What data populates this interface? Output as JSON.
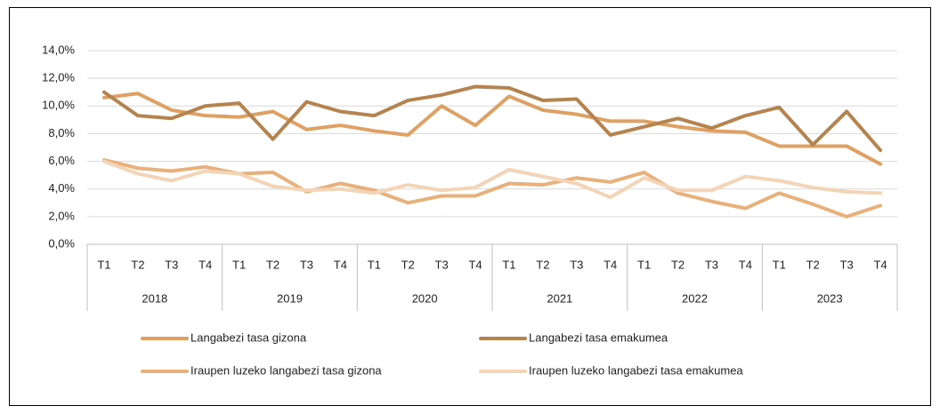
{
  "chart_data": {
    "type": "line",
    "categories": [
      "T1",
      "T2",
      "T3",
      "T4",
      "T1",
      "T2",
      "T3",
      "T4",
      "T1",
      "T2",
      "T3",
      "T4",
      "T1",
      "T2",
      "T3",
      "T4",
      "T1",
      "T2",
      "T3",
      "T4",
      "T1",
      "T2",
      "T3",
      "T4"
    ],
    "category_groups": [
      "2018",
      "2019",
      "2020",
      "2021",
      "2022",
      "2023"
    ],
    "series": [
      {
        "name": "Langabezi tasa gizona",
        "color": "#dfa163",
        "values": [
          10.6,
          10.9,
          9.7,
          9.3,
          9.2,
          9.6,
          8.3,
          8.6,
          8.2,
          7.9,
          10.0,
          8.6,
          10.7,
          9.7,
          9.4,
          8.9,
          8.9,
          8.5,
          8.2,
          8.1,
          7.1,
          7.1,
          7.1,
          5.8
        ]
      },
      {
        "name": "Langabezi tasa emakumea",
        "color": "#b5834e",
        "values": [
          11.0,
          9.3,
          9.1,
          10.0,
          10.2,
          7.6,
          10.3,
          9.6,
          9.3,
          10.4,
          10.8,
          11.4,
          11.3,
          10.4,
          10.5,
          7.9,
          8.5,
          9.1,
          8.4,
          9.3,
          9.9,
          7.2,
          9.6,
          6.8
        ]
      },
      {
        "name": "Iraupen luzeko langabezi tasa gizona",
        "color": "#e8b07a",
        "values": [
          6.1,
          5.5,
          5.3,
          5.6,
          5.1,
          5.2,
          3.8,
          4.4,
          3.9,
          3.0,
          3.5,
          3.5,
          4.4,
          4.3,
          4.8,
          4.5,
          5.2,
          3.7,
          3.1,
          2.6,
          3.7,
          2.9,
          2.0,
          2.8
        ]
      },
      {
        "name": "Iraupen luzeko langabezi tasa emakumea",
        "color": "#f3d4b6",
        "values": [
          6.0,
          5.1,
          4.6,
          5.3,
          5.1,
          4.2,
          3.9,
          4.0,
          3.7,
          4.3,
          3.9,
          4.1,
          5.4,
          4.9,
          4.4,
          3.4,
          4.8,
          3.9,
          3.9,
          4.9,
          4.6,
          4.1,
          3.8,
          3.7
        ]
      }
    ],
    "ylim": [
      0,
      14
    ],
    "yticks": [
      {
        "value": 0,
        "label": "0,0%"
      },
      {
        "value": 2,
        "label": "2,0%"
      },
      {
        "value": 4,
        "label": "4,0%"
      },
      {
        "value": 6,
        "label": "6,0%"
      },
      {
        "value": 8,
        "label": "8,0%"
      },
      {
        "value": 10,
        "label": "10,0%"
      },
      {
        "value": 12,
        "label": "12,0%"
      },
      {
        "value": 14,
        "label": "14,0%"
      }
    ],
    "grid": true,
    "legend": "bottom"
  }
}
